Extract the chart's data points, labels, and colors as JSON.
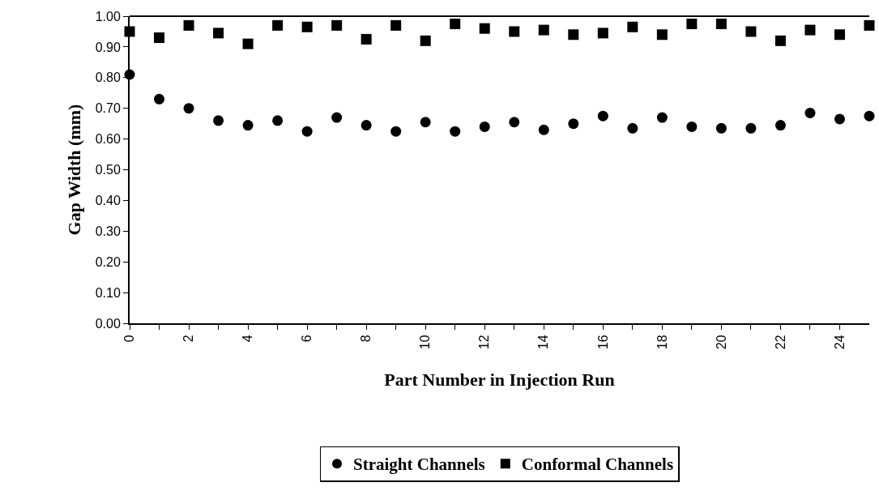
{
  "chart_data": {
    "type": "scatter",
    "xlabel": "Part Number in Injection Run",
    "ylabel": "Gap Width (mm)",
    "x": [
      0,
      1,
      2,
      3,
      4,
      5,
      6,
      7,
      8,
      9,
      10,
      11,
      12,
      13,
      14,
      15,
      16,
      17,
      18,
      19,
      20,
      21,
      22,
      23,
      24,
      25
    ],
    "series": [
      {
        "name": "Straight Channels",
        "color": "#000000",
        "marker": "circle",
        "values": [
          0.81,
          0.73,
          0.7,
          0.66,
          0.645,
          0.66,
          0.625,
          0.67,
          0.645,
          0.625,
          0.655,
          0.625,
          0.64,
          0.655,
          0.63,
          0.65,
          0.675,
          0.635,
          0.67,
          0.64,
          0.635,
          0.635,
          0.645,
          0.685,
          0.665,
          0.675
        ]
      },
      {
        "name": "Conformal Channels",
        "color": "#000000",
        "marker": "square",
        "values": [
          0.95,
          0.93,
          0.97,
          0.945,
          0.91,
          0.97,
          0.965,
          0.97,
          0.925,
          0.97,
          0.92,
          0.975,
          0.96,
          0.95,
          0.955,
          0.94,
          0.945,
          0.965,
          0.94,
          0.975,
          0.975,
          0.95,
          0.92,
          0.955,
          0.94,
          0.97
        ]
      }
    ],
    "xlim": [
      0,
      25
    ],
    "xticks": [
      0,
      {
        "value": 1,
        "label": null
      },
      2,
      {
        "value": 3,
        "label": null
      },
      4,
      {
        "value": 5,
        "label": null
      },
      6,
      {
        "value": 7,
        "label": null
      },
      8,
      {
        "value": 9,
        "label": null
      },
      10,
      {
        "value": 11,
        "label": null
      },
      12,
      {
        "value": 13,
        "label": null
      },
      14,
      {
        "value": 15,
        "label": null
      },
      16,
      {
        "value": 17,
        "label": null
      },
      18,
      {
        "value": 19,
        "label": null
      },
      20,
      {
        "value": 21,
        "label": null
      },
      22,
      {
        "value": 23,
        "label": null
      },
      24
    ],
    "ylim": [
      0,
      1
    ],
    "yticks": [
      {
        "value": 0,
        "label": "0.00"
      },
      {
        "value": 0.1,
        "label": "0.10"
      },
      {
        "value": 0.2,
        "label": "0.20"
      },
      {
        "value": 0.3,
        "label": "0.30"
      },
      {
        "value": 0.4,
        "label": "0.40"
      },
      {
        "value": 0.5,
        "label": "0.50"
      },
      {
        "value": 0.6,
        "label": "0.60"
      },
      {
        "value": 0.7,
        "label": "0.70"
      },
      {
        "value": 0.8,
        "label": "0.80"
      },
      {
        "value": 0.9,
        "label": "0.90"
      },
      {
        "value": 1,
        "label": "1.00"
      }
    ],
    "legend": "bottom"
  }
}
